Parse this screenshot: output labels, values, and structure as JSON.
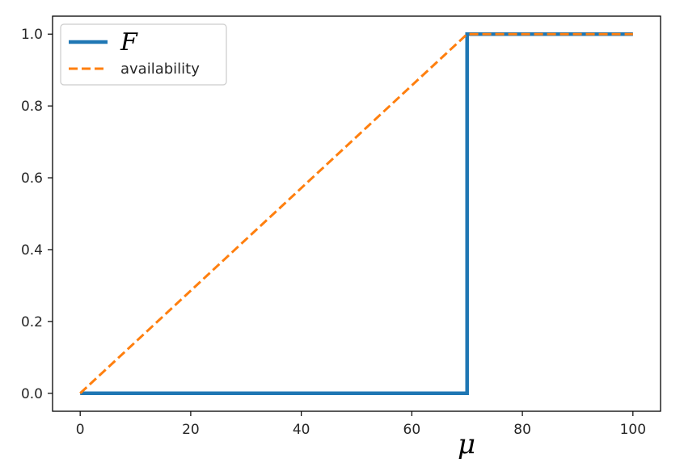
{
  "chart_data": {
    "type": "line",
    "title": "",
    "xlabel": "μ",
    "ylabel": "",
    "xlim": [
      -5,
      105
    ],
    "ylim": [
      -0.05,
      1.05
    ],
    "x_ticks": [
      0,
      20,
      40,
      60,
      80,
      100
    ],
    "x_tick_labels": [
      "0",
      "20",
      "40",
      "60",
      "80",
      "100"
    ],
    "y_ticks": [
      0.0,
      0.2,
      0.4,
      0.6,
      0.8,
      1.0
    ],
    "y_tick_labels": [
      "0.0",
      "0.2",
      "0.4",
      "0.6",
      "0.8",
      "1.0"
    ],
    "grid": false,
    "legend_position": "upper-left",
    "series": [
      {
        "name": "F",
        "style": "solid",
        "color": "#1f77b4",
        "x": [
          0,
          70,
          70,
          100
        ],
        "y": [
          0,
          0,
          1,
          1
        ]
      },
      {
        "name": "availability",
        "style": "dashed",
        "color": "#ff7f0e",
        "x": [
          0,
          70,
          100
        ],
        "y": [
          0,
          1,
          1
        ]
      }
    ]
  }
}
